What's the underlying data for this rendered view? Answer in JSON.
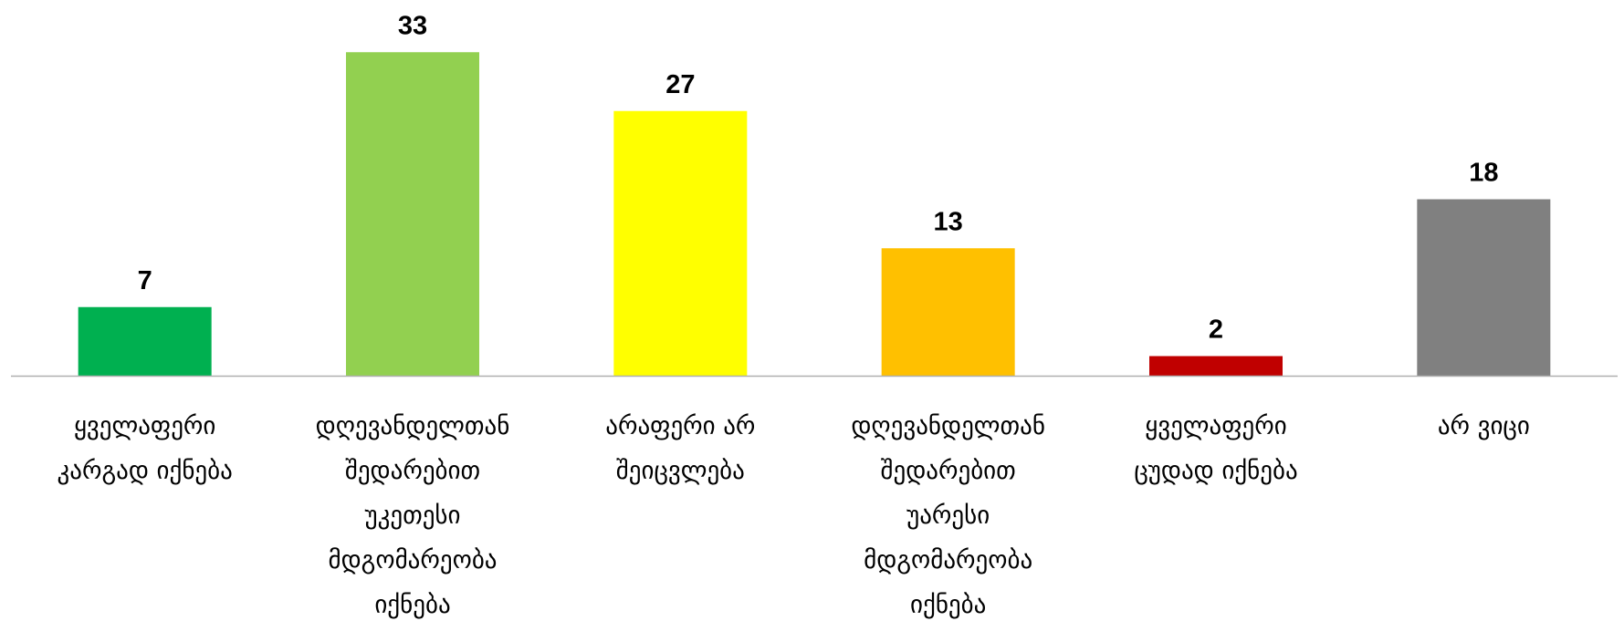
{
  "chart_data": {
    "type": "bar",
    "title": "",
    "xlabel": "",
    "ylabel": "",
    "ylim": [
      0,
      35
    ],
    "grid": false,
    "legend": "none",
    "categories": [
      [
        "ყველაფერი",
        "კარგად იქნება"
      ],
      [
        "დღევანდელთან",
        "შედარებით",
        "უკეთესი",
        "მდგომარეობა",
        "იქნება"
      ],
      [
        "არაფერი არ",
        "შეიცვლება"
      ],
      [
        "დღევანდელთან",
        "შედარებით",
        "უარესი",
        "მდგომარეობა",
        "იქნება"
      ],
      [
        "ყველაფერი",
        "ცუდად იქნება"
      ],
      [
        "არ ვიცი"
      ]
    ],
    "values": [
      7,
      33,
      27,
      13,
      2,
      18
    ],
    "data_labels": [
      "7",
      "33",
      "27",
      "13",
      "2",
      "18"
    ],
    "colors": [
      "#00b050",
      "#92d050",
      "#ffff00",
      "#ffc000",
      "#c00000",
      "#808080"
    ],
    "axis_color": "#b0b0b0"
  }
}
